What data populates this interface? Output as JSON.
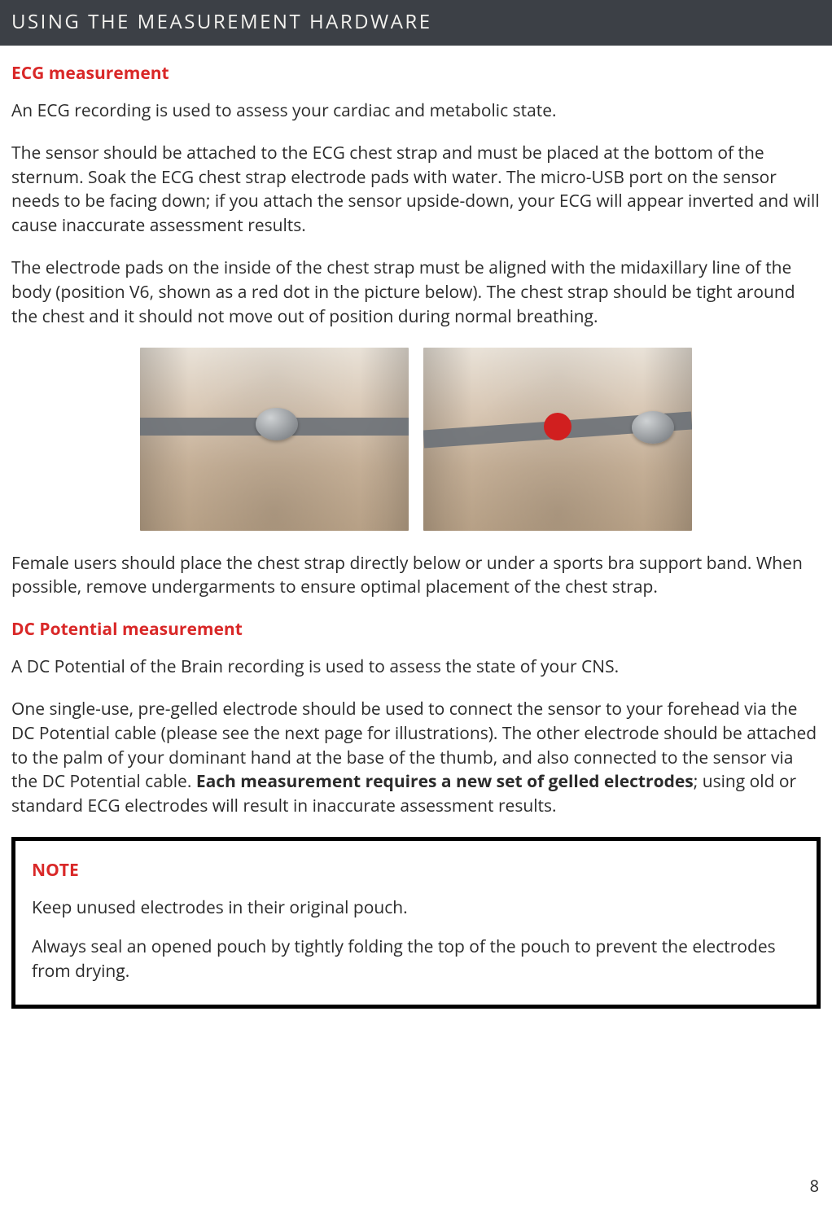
{
  "header": {
    "title": "USING THE MEASUREMENT HARDWARE"
  },
  "sections": {
    "ecg": {
      "title": "ECG measurement",
      "p1": "An ECG recording is used to assess your cardiac and metabolic state.",
      "p2": "The sensor should be attached to the ECG chest strap and must be placed at the bottom of the sternum. Soak the ECG chest strap electrode pads with water. The micro-USB port on the sensor needs to be facing down; if you attach the sensor upside-down, your ECG will appear inverted and will cause inaccurate assessment results.",
      "p3": "The electrode pads on the inside of the chest strap must be aligned with the midaxillary line of the body (position V6, shown as a red dot in the picture below). The chest strap should be tight around the chest and it should not move out of position during normal breathing.",
      "p4": "Female users should place the chest strap directly below or under a sports bra support band. When possible, remove undergarments to ensure optimal placement of the chest strap."
    },
    "dc": {
      "title": "DC Potential measurement",
      "p1": "A DC Potential of the Brain recording is used to assess the state of your CNS.",
      "p2a": "One single-use, pre-gelled electrode should be used to connect the sensor to your forehead via the DC Potential cable (please see the next page for illustrations). The other electrode should be attached to the palm of your dominant hand at the base of the thumb, and also connected to the sensor via the DC Potential cable. ",
      "p2b": "Each measurement requires a new set of gelled electrodes",
      "p2c": "; using old or standard ECG electrodes will result in inaccurate assessment results."
    }
  },
  "note": {
    "title": "NOTE",
    "p1": "Keep unused electrodes in their original pouch.",
    "p2": "Always seal an opened pouch by tightly folding the top of the pouch to prevent the electrodes from drying."
  },
  "figure": {
    "strap_color": "#6c7178",
    "red_dot_color": "#d11f1f",
    "skin_gradient_top": "#e9e2d8",
    "skin_gradient_bottom": "#bca58a"
  },
  "colors": {
    "header_bg": "#3c4046",
    "header_text": "#f3f2ef",
    "accent_red": "#d92828",
    "body_text": "#2b2b2b",
    "note_border": "#000000",
    "page_bg": "#ffffff"
  },
  "page_number": "8"
}
